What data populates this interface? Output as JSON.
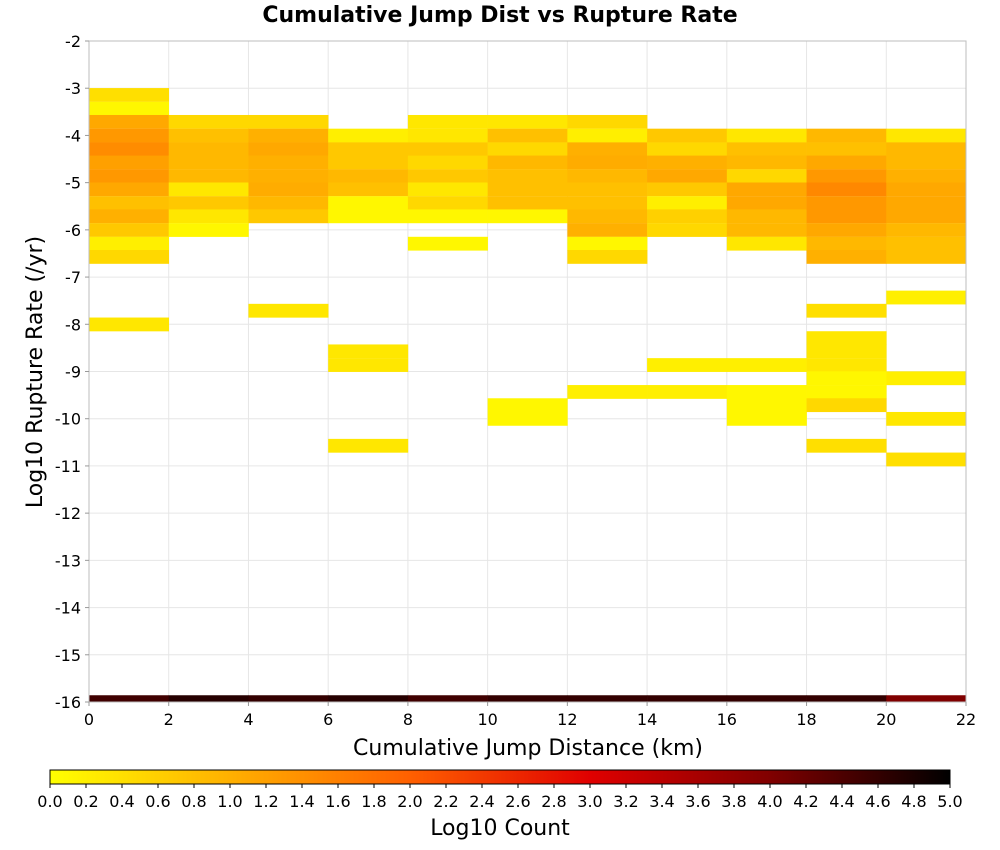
{
  "chart_data": {
    "type": "heatmap",
    "title": "Cumulative Jump Dist vs Rupture Rate",
    "xlabel": "Cumulative Jump Distance (km)",
    "ylabel": "Log10 Rupture Rate (/yr)",
    "xlim": [
      0,
      22
    ],
    "ylim": [
      -16,
      -2
    ],
    "x_ticks": [
      "0",
      "2",
      "4",
      "6",
      "8",
      "10",
      "12",
      "14",
      "16",
      "18",
      "20",
      "22"
    ],
    "y_ticks": [
      "-2",
      "-3",
      "-4",
      "-5",
      "-6",
      "-7",
      "-8",
      "-9",
      "-10",
      "-11",
      "-12",
      "-13",
      "-14",
      "-15",
      "-16"
    ],
    "grid": true,
    "x_bin_width": 2,
    "y_bin_height": 0.286,
    "colorbar": {
      "label": "Log10 Count",
      "min": 0.0,
      "max": 5.0,
      "ticks": [
        "0.0",
        "0.2",
        "0.4",
        "0.6",
        "0.8",
        "1.0",
        "1.2",
        "1.4",
        "1.6",
        "1.8",
        "2.0",
        "2.2",
        "2.4",
        "2.6",
        "2.8",
        "3.0",
        "3.2",
        "3.4",
        "3.6",
        "3.8",
        "4.0",
        "4.2",
        "4.4",
        "4.6",
        "4.8",
        "5.0"
      ],
      "colors": [
        "#ffff00",
        "#ffb000",
        "#ff6000",
        "#e00000",
        "#800000",
        "#000000"
      ]
    },
    "cells": [
      {
        "x": 0,
        "y": -3.14,
        "v": 0.4
      },
      {
        "x": 0,
        "y": -3.43,
        "v": 0.1
      },
      {
        "x": 0,
        "y": -3.71,
        "v": 1.1
      },
      {
        "x": 0,
        "y": -4.0,
        "v": 1.3
      },
      {
        "x": 0,
        "y": -4.29,
        "v": 1.45
      },
      {
        "x": 0,
        "y": -4.57,
        "v": 1.2
      },
      {
        "x": 0,
        "y": -4.86,
        "v": 1.3
      },
      {
        "x": 0,
        "y": -5.14,
        "v": 1.1
      },
      {
        "x": 0,
        "y": -5.43,
        "v": 0.8
      },
      {
        "x": 0,
        "y": -5.71,
        "v": 1.0
      },
      {
        "x": 0,
        "y": -6.0,
        "v": 0.7
      },
      {
        "x": 0,
        "y": -6.29,
        "v": 0.2
      },
      {
        "x": 0,
        "y": -6.57,
        "v": 0.5
      },
      {
        "x": 0,
        "y": -8.0,
        "v": 0.3
      },
      {
        "x": 2,
        "y": -3.71,
        "v": 0.5
      },
      {
        "x": 2,
        "y": -4.0,
        "v": 0.8
      },
      {
        "x": 2,
        "y": -4.29,
        "v": 0.9
      },
      {
        "x": 2,
        "y": -4.57,
        "v": 0.9
      },
      {
        "x": 2,
        "y": -4.86,
        "v": 0.9
      },
      {
        "x": 2,
        "y": -5.14,
        "v": 0.3
      },
      {
        "x": 2,
        "y": -5.43,
        "v": 0.7
      },
      {
        "x": 2,
        "y": -5.71,
        "v": 0.3
      },
      {
        "x": 2,
        "y": -6.0,
        "v": 0.1
      },
      {
        "x": 4,
        "y": -3.71,
        "v": 0.5
      },
      {
        "x": 4,
        "y": -4.0,
        "v": 1.0
      },
      {
        "x": 4,
        "y": -4.29,
        "v": 1.1
      },
      {
        "x": 4,
        "y": -4.57,
        "v": 1.0
      },
      {
        "x": 4,
        "y": -4.86,
        "v": 1.0
      },
      {
        "x": 4,
        "y": -5.14,
        "v": 1.05
      },
      {
        "x": 4,
        "y": -5.43,
        "v": 0.9
      },
      {
        "x": 4,
        "y": -5.71,
        "v": 0.7
      },
      {
        "x": 4,
        "y": -7.71,
        "v": 0.3
      },
      {
        "x": 6,
        "y": -4.0,
        "v": 0.2
      },
      {
        "x": 6,
        "y": -4.29,
        "v": 0.7
      },
      {
        "x": 6,
        "y": -4.57,
        "v": 0.7
      },
      {
        "x": 6,
        "y": -4.86,
        "v": 0.9
      },
      {
        "x": 6,
        "y": -5.14,
        "v": 0.8
      },
      {
        "x": 6,
        "y": -5.43,
        "v": 0.1
      },
      {
        "x": 6,
        "y": -5.71,
        "v": 0.1
      },
      {
        "x": 6,
        "y": -8.57,
        "v": 0.3
      },
      {
        "x": 6,
        "y": -8.86,
        "v": 0.3
      },
      {
        "x": 6,
        "y": -10.57,
        "v": 0.3
      },
      {
        "x": 8,
        "y": -3.71,
        "v": 0.3
      },
      {
        "x": 8,
        "y": -4.0,
        "v": 0.3
      },
      {
        "x": 8,
        "y": -4.29,
        "v": 0.7
      },
      {
        "x": 8,
        "y": -4.57,
        "v": 0.5
      },
      {
        "x": 8,
        "y": -4.86,
        "v": 0.7
      },
      {
        "x": 8,
        "y": -5.14,
        "v": 0.3
      },
      {
        "x": 8,
        "y": -5.43,
        "v": 0.5
      },
      {
        "x": 8,
        "y": -5.71,
        "v": 0.1
      },
      {
        "x": 8,
        "y": -6.29,
        "v": 0.1
      },
      {
        "x": 10,
        "y": -3.71,
        "v": 0.3
      },
      {
        "x": 10,
        "y": -4.0,
        "v": 0.8
      },
      {
        "x": 10,
        "y": -4.29,
        "v": 0.5
      },
      {
        "x": 10,
        "y": -4.57,
        "v": 0.9
      },
      {
        "x": 10,
        "y": -4.86,
        "v": 0.8
      },
      {
        "x": 10,
        "y": -5.14,
        "v": 0.8
      },
      {
        "x": 10,
        "y": -5.43,
        "v": 0.8
      },
      {
        "x": 10,
        "y": -5.71,
        "v": 0.1
      },
      {
        "x": 10,
        "y": -9.71,
        "v": 0.1
      },
      {
        "x": 10,
        "y": -10.0,
        "v": 0.1
      },
      {
        "x": 12,
        "y": -3.71,
        "v": 0.5
      },
      {
        "x": 12,
        "y": -4.0,
        "v": 0.2
      },
      {
        "x": 12,
        "y": -4.29,
        "v": 1.0
      },
      {
        "x": 12,
        "y": -4.57,
        "v": 1.05
      },
      {
        "x": 12,
        "y": -4.86,
        "v": 0.9
      },
      {
        "x": 12,
        "y": -5.14,
        "v": 0.8
      },
      {
        "x": 12,
        "y": -5.43,
        "v": 0.8
      },
      {
        "x": 12,
        "y": -5.71,
        "v": 0.9
      },
      {
        "x": 12,
        "y": -6.0,
        "v": 1.0
      },
      {
        "x": 12,
        "y": -6.29,
        "v": 0.1
      },
      {
        "x": 12,
        "y": -6.57,
        "v": 0.5
      },
      {
        "x": 12,
        "y": -9.43,
        "v": 0.2
      },
      {
        "x": 14,
        "y": -4.0,
        "v": 0.7
      },
      {
        "x": 14,
        "y": -4.29,
        "v": 0.5
      },
      {
        "x": 14,
        "y": -4.57,
        "v": 1.0
      },
      {
        "x": 14,
        "y": -4.86,
        "v": 1.1
      },
      {
        "x": 14,
        "y": -5.14,
        "v": 0.7
      },
      {
        "x": 14,
        "y": -5.43,
        "v": 0.2
      },
      {
        "x": 14,
        "y": -5.71,
        "v": 0.6
      },
      {
        "x": 14,
        "y": -6.0,
        "v": 0.5
      },
      {
        "x": 14,
        "y": -8.86,
        "v": 0.2
      },
      {
        "x": 14,
        "y": -9.43,
        "v": 0.2
      },
      {
        "x": 16,
        "y": -4.0,
        "v": 0.3
      },
      {
        "x": 16,
        "y": -4.29,
        "v": 0.8
      },
      {
        "x": 16,
        "y": -4.57,
        "v": 0.9
      },
      {
        "x": 16,
        "y": -4.86,
        "v": 0.5
      },
      {
        "x": 16,
        "y": -5.14,
        "v": 1.1
      },
      {
        "x": 16,
        "y": -5.43,
        "v": 1.1
      },
      {
        "x": 16,
        "y": -5.71,
        "v": 0.9
      },
      {
        "x": 16,
        "y": -6.0,
        "v": 0.9
      },
      {
        "x": 16,
        "y": -6.29,
        "v": 0.3
      },
      {
        "x": 16,
        "y": -8.86,
        "v": 0.2
      },
      {
        "x": 16,
        "y": -9.43,
        "v": 0.1
      },
      {
        "x": 16,
        "y": -9.71,
        "v": 0.1
      },
      {
        "x": 16,
        "y": -10.0,
        "v": 0.1
      },
      {
        "x": 18,
        "y": -4.0,
        "v": 0.9
      },
      {
        "x": 18,
        "y": -4.29,
        "v": 0.8
      },
      {
        "x": 18,
        "y": -4.57,
        "v": 1.1
      },
      {
        "x": 18,
        "y": -4.86,
        "v": 1.3
      },
      {
        "x": 18,
        "y": -5.14,
        "v": 1.5
      },
      {
        "x": 18,
        "y": -5.43,
        "v": 1.3
      },
      {
        "x": 18,
        "y": -5.71,
        "v": 1.3
      },
      {
        "x": 18,
        "y": -6.0,
        "v": 1.1
      },
      {
        "x": 18,
        "y": -6.29,
        "v": 0.9
      },
      {
        "x": 18,
        "y": -6.57,
        "v": 1.0
      },
      {
        "x": 18,
        "y": -7.71,
        "v": 0.4
      },
      {
        "x": 18,
        "y": -8.29,
        "v": 0.3
      },
      {
        "x": 18,
        "y": -8.57,
        "v": 0.3
      },
      {
        "x": 18,
        "y": -8.86,
        "v": 0.3
      },
      {
        "x": 18,
        "y": -9.14,
        "v": 0.1
      },
      {
        "x": 18,
        "y": -9.43,
        "v": 0.1
      },
      {
        "x": 18,
        "y": -9.71,
        "v": 0.5
      },
      {
        "x": 18,
        "y": -10.57,
        "v": 0.4
      },
      {
        "x": 20,
        "y": -4.0,
        "v": 0.3
      },
      {
        "x": 20,
        "y": -4.29,
        "v": 0.9
      },
      {
        "x": 20,
        "y": -4.57,
        "v": 0.9
      },
      {
        "x": 20,
        "y": -4.86,
        "v": 1.0
      },
      {
        "x": 20,
        "y": -5.14,
        "v": 1.1
      },
      {
        "x": 20,
        "y": -5.43,
        "v": 1.1
      },
      {
        "x": 20,
        "y": -5.71,
        "v": 1.1
      },
      {
        "x": 20,
        "y": -6.0,
        "v": 0.9
      },
      {
        "x": 20,
        "y": -6.29,
        "v": 0.8
      },
      {
        "x": 20,
        "y": -6.57,
        "v": 0.8
      },
      {
        "x": 20,
        "y": -7.43,
        "v": 0.2
      },
      {
        "x": 20,
        "y": -9.14,
        "v": 0.2
      },
      {
        "x": 20,
        "y": -10.0,
        "v": 0.3
      },
      {
        "x": 20,
        "y": -10.86,
        "v": 0.4
      }
    ],
    "bottom_row": {
      "y": -16,
      "cells": [
        {
          "x": 0,
          "v": 4.5
        },
        {
          "x": 2,
          "v": 4.7
        },
        {
          "x": 4,
          "v": 4.6
        },
        {
          "x": 6,
          "v": 4.7
        },
        {
          "x": 8,
          "v": 4.5
        },
        {
          "x": 10,
          "v": 4.6
        },
        {
          "x": 12,
          "v": 4.6
        },
        {
          "x": 14,
          "v": 4.6
        },
        {
          "x": 16,
          "v": 4.6
        },
        {
          "x": 18,
          "v": 4.6
        },
        {
          "x": 20,
          "v": 4.0
        }
      ]
    }
  }
}
